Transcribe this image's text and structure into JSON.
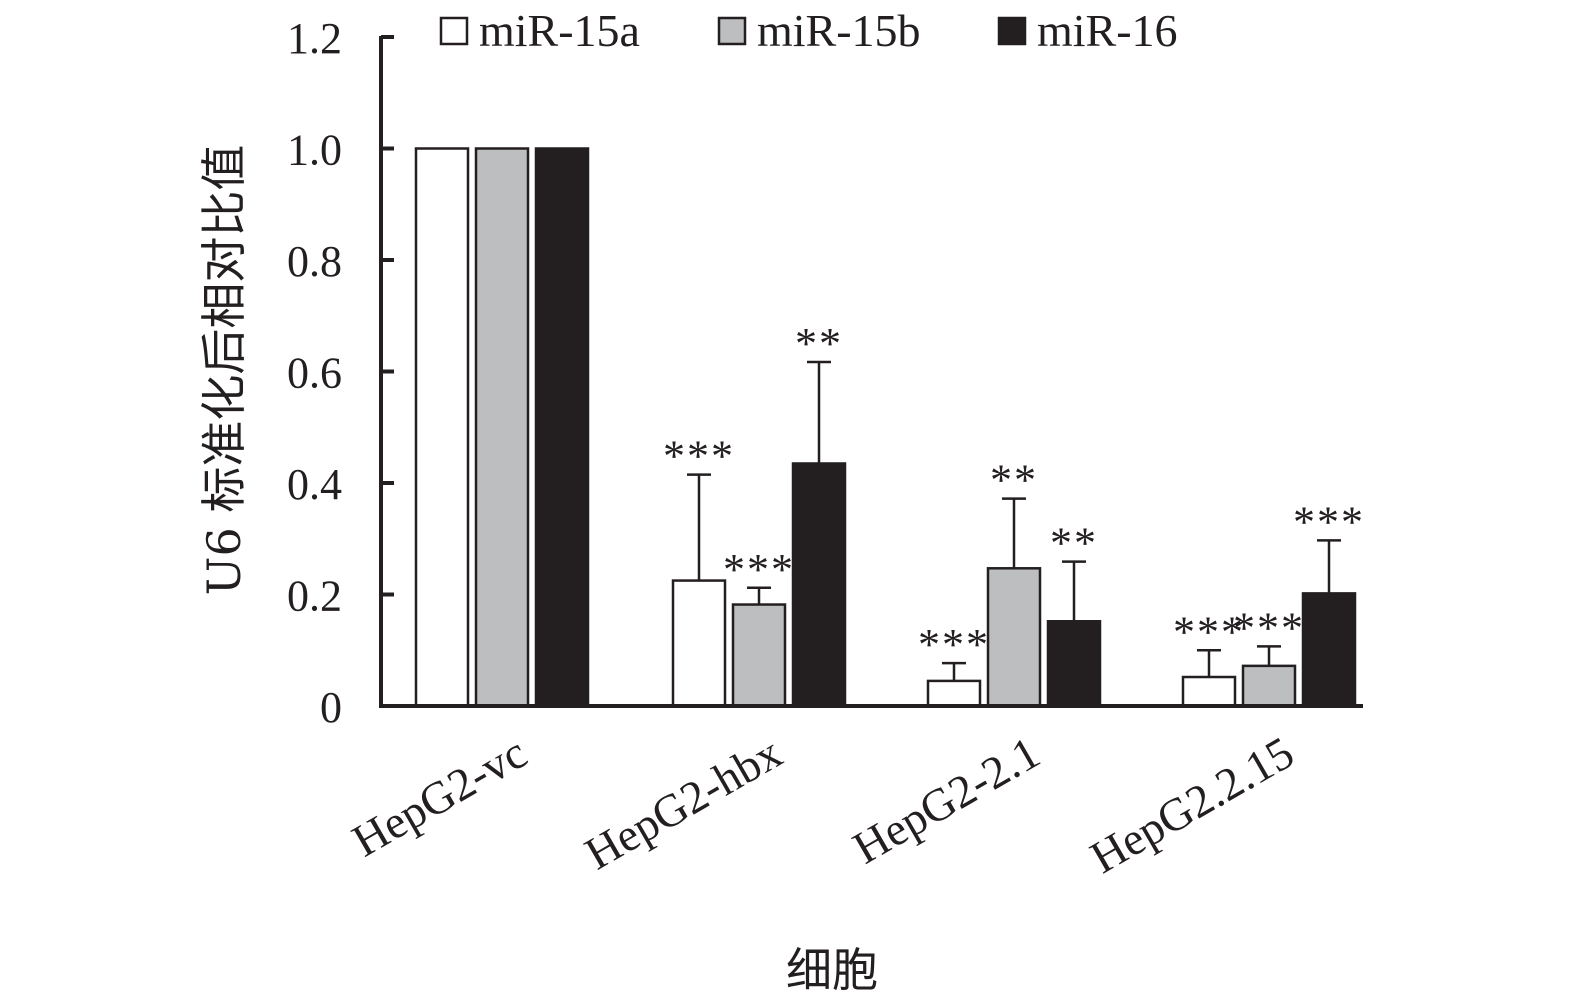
{
  "chart_data": {
    "type": "bar",
    "title": "",
    "xlabel": "细胞",
    "ylabel": "U6 标准化后相对比值",
    "ylim": [
      0,
      1.2
    ],
    "yticks": [
      {
        "value": 0,
        "label": "0"
      },
      {
        "value": 0.2,
        "label": "0.2"
      },
      {
        "value": 0.4,
        "label": "0.4"
      },
      {
        "value": 0.6,
        "label": "0.6"
      },
      {
        "value": 0.8,
        "label": "0.8"
      },
      {
        "value": 1.0,
        "label": "1.0"
      },
      {
        "value": 1.2,
        "label": "1.2"
      }
    ],
    "categories": [
      "HepG2-vc",
      "HepG2-hbx",
      "HepG2-2.1",
      "HepG2.2.15"
    ],
    "legend_position": "top",
    "grid": false,
    "series": [
      {
        "name": "miR-15a",
        "color": "#ffffff",
        "values": [
          1.0,
          0.225,
          0.045,
          0.052
        ],
        "errors": [
          0,
          0.19,
          0.032,
          0.048
        ],
        "significance": [
          "",
          "***",
          "***",
          "***"
        ]
      },
      {
        "name": "miR-15b",
        "color": "#bcbec0",
        "values": [
          1.0,
          0.182,
          0.247,
          0.072
        ],
        "errors": [
          0,
          0.03,
          0.125,
          0.035
        ],
        "significance": [
          "",
          "***",
          "**",
          "***"
        ]
      },
      {
        "name": "miR-16",
        "color": "#231f20",
        "values": [
          1.0,
          0.435,
          0.152,
          0.202
        ],
        "errors": [
          0,
          0.182,
          0.107,
          0.095
        ],
        "significance": [
          "",
          "**",
          "**",
          "***"
        ]
      }
    ]
  }
}
